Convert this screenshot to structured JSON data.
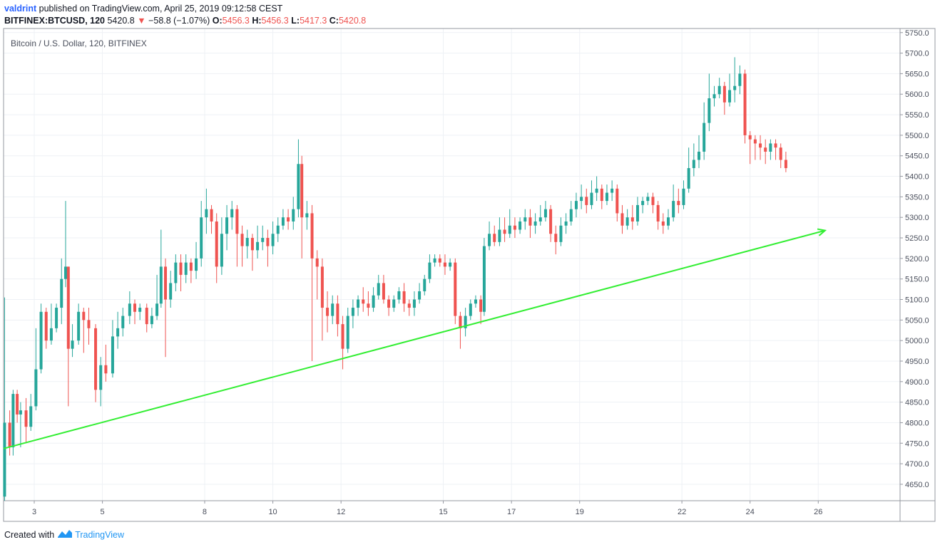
{
  "header": {
    "user": "valdrint",
    "published_text": "published on TradingView.com, April 25, 2019 09:12:58 CEST",
    "symbol": "BITFINEX:BTCUSD, 120",
    "last": "5420.8",
    "change_arrow": "▼",
    "change": "−58.8 (−1.07%)",
    "o_label": "O:",
    "o_value": "5456.3",
    "h_label": "H:",
    "h_value": "5456.3",
    "l_label": "L:",
    "l_value": "5417.3",
    "c_label": "C:",
    "c_value": "5420.8"
  },
  "footer": {
    "created_with": "Created with",
    "brand": "TradingView"
  },
  "colors": {
    "up": "#26a69a",
    "down": "#ef5350",
    "trendline": "#33ee33",
    "grid": "#eef1f5"
  },
  "chart_data": {
    "type": "candlestick",
    "title": "Bitcoin / U.S. Dollar, 120, BITFINEX",
    "ylim": [
      4610,
      5760
    ],
    "yticks": [
      4650,
      4700,
      4750,
      4800,
      4850,
      4900,
      4950,
      5000,
      5050,
      5100,
      5150,
      5200,
      5250,
      5300,
      5350,
      5400,
      5450,
      5500,
      5550,
      5600,
      5650,
      5700,
      5750
    ],
    "x_tick_labels": [
      "3",
      "5",
      "8",
      "10",
      "12",
      "15",
      "17",
      "19",
      "22",
      "24",
      "26"
    ],
    "x_tick_days": [
      3,
      5,
      8,
      10,
      12,
      15,
      17,
      19,
      22,
      24,
      26
    ],
    "xlim_days": [
      2.1,
      28.4
    ],
    "grid": true,
    "trendline": {
      "from": {
        "day": 2.1,
        "price": 4737
      },
      "to": {
        "day": 26.2,
        "price": 5268
      }
    },
    "candles": [
      [
        2.13,
        4620,
        4800,
        4610,
        5105
      ],
      [
        2.28,
        4800,
        4740,
        4720,
        4830
      ],
      [
        2.38,
        4740,
        4870,
        4720,
        4880
      ],
      [
        2.5,
        4870,
        4820,
        4800,
        4880
      ],
      [
        2.6,
        4820,
        4830,
        4740,
        4850
      ],
      [
        2.76,
        4830,
        4790,
        4750,
        4860
      ],
      [
        2.9,
        4790,
        4840,
        4780,
        4870
      ],
      [
        3.05,
        4840,
        4930,
        4830,
        5030
      ],
      [
        3.2,
        4930,
        5070,
        4920,
        5090
      ],
      [
        3.35,
        5070,
        5000,
        4980,
        5080
      ],
      [
        3.5,
        5000,
        5030,
        4990,
        5090
      ],
      [
        3.65,
        5030,
        5080,
        5020,
        5090
      ],
      [
        3.8,
        5080,
        5150,
        5040,
        5200
      ],
      [
        3.92,
        5150,
        5180,
        5130,
        5340
      ],
      [
        4.0,
        5180,
        4980,
        4840,
        5180
      ],
      [
        4.12,
        4980,
        5000,
        4960,
        5040
      ],
      [
        4.3,
        5000,
        5070,
        4990,
        5090
      ],
      [
        4.45,
        5070,
        5050,
        4970,
        5080
      ],
      [
        4.6,
        5050,
        5030,
        4990,
        5080
      ],
      [
        4.8,
        5030,
        4880,
        4850,
        5040
      ],
      [
        4.95,
        4880,
        4940,
        4840,
        4960
      ],
      [
        5.1,
        4940,
        4920,
        4900,
        4990
      ],
      [
        5.3,
        4920,
        5010,
        4910,
        5050
      ],
      [
        5.45,
        5010,
        5030,
        4980,
        5070
      ],
      [
        5.6,
        5030,
        5060,
        5010,
        5080
      ],
      [
        5.8,
        5060,
        5090,
        5040,
        5120
      ],
      [
        5.95,
        5090,
        5070,
        5040,
        5100
      ],
      [
        6.1,
        5070,
        5080,
        5050,
        5090
      ],
      [
        6.3,
        5080,
        5040,
        5020,
        5090
      ],
      [
        6.45,
        5040,
        5060,
        5030,
        5080
      ],
      [
        6.6,
        5060,
        5090,
        5050,
        5160
      ],
      [
        6.72,
        5090,
        5180,
        5080,
        5270
      ],
      [
        6.85,
        5180,
        5100,
        4960,
        5200
      ],
      [
        7.0,
        5100,
        5140,
        5080,
        5170
      ],
      [
        7.15,
        5140,
        5190,
        5120,
        5210
      ],
      [
        7.3,
        5190,
        5160,
        5120,
        5210
      ],
      [
        7.45,
        5160,
        5190,
        5140,
        5210
      ],
      [
        7.6,
        5190,
        5170,
        5140,
        5200
      ],
      [
        7.75,
        5170,
        5200,
        5150,
        5240
      ],
      [
        7.9,
        5200,
        5300,
        5180,
        5340
      ],
      [
        8.05,
        5300,
        5320,
        5260,
        5370
      ],
      [
        8.2,
        5320,
        5290,
        5260,
        5330
      ],
      [
        8.35,
        5290,
        5180,
        5140,
        5310
      ],
      [
        8.5,
        5180,
        5260,
        5160,
        5300
      ],
      [
        8.65,
        5260,
        5300,
        5220,
        5330
      ],
      [
        8.8,
        5300,
        5320,
        5270,
        5340
      ],
      [
        8.95,
        5320,
        5260,
        5180,
        5330
      ],
      [
        9.1,
        5260,
        5230,
        5180,
        5280
      ],
      [
        9.25,
        5230,
        5250,
        5200,
        5270
      ],
      [
        9.4,
        5250,
        5220,
        5170,
        5260
      ],
      [
        9.55,
        5220,
        5240,
        5200,
        5280
      ],
      [
        9.7,
        5240,
        5250,
        5220,
        5280
      ],
      [
        9.85,
        5250,
        5230,
        5180,
        5270
      ],
      [
        10.0,
        5230,
        5260,
        5210,
        5290
      ],
      [
        10.15,
        5260,
        5280,
        5240,
        5300
      ],
      [
        10.3,
        5280,
        5300,
        5270,
        5320
      ],
      [
        10.45,
        5300,
        5290,
        5270,
        5320
      ],
      [
        10.6,
        5290,
        5320,
        5270,
        5350
      ],
      [
        10.75,
        5320,
        5430,
        5300,
        5490
      ],
      [
        10.85,
        5430,
        5300,
        5200,
        5450
      ],
      [
        11.0,
        5300,
        5310,
        5270,
        5340
      ],
      [
        11.15,
        5310,
        5200,
        4950,
        5330
      ],
      [
        11.3,
        5200,
        5180,
        5100,
        5220
      ],
      [
        11.45,
        5180,
        5080,
        5000,
        5200
      ],
      [
        11.6,
        5080,
        5060,
        5020,
        5120
      ],
      [
        11.75,
        5060,
        5090,
        5040,
        5110
      ],
      [
        11.9,
        5090,
        5040,
        5010,
        5110
      ],
      [
        12.05,
        5040,
        4980,
        4930,
        5060
      ],
      [
        12.2,
        4980,
        5060,
        4970,
        5080
      ],
      [
        12.35,
        5060,
        5080,
        5030,
        5100
      ],
      [
        12.5,
        5080,
        5100,
        5060,
        5110
      ],
      [
        12.65,
        5100,
        5090,
        5070,
        5130
      ],
      [
        12.8,
        5090,
        5080,
        5060,
        5120
      ],
      [
        12.95,
        5080,
        5110,
        5070,
        5130
      ],
      [
        13.1,
        5110,
        5140,
        5100,
        5160
      ],
      [
        13.25,
        5140,
        5100,
        5090,
        5160
      ],
      [
        13.4,
        5100,
        5080,
        5060,
        5110
      ],
      [
        13.55,
        5080,
        5100,
        5070,
        5110
      ],
      [
        13.7,
        5100,
        5120,
        5090,
        5130
      ],
      [
        13.85,
        5120,
        5090,
        5070,
        5140
      ],
      [
        14.0,
        5090,
        5080,
        5060,
        5100
      ],
      [
        14.15,
        5080,
        5100,
        5060,
        5120
      ],
      [
        14.3,
        5100,
        5120,
        5090,
        5140
      ],
      [
        14.45,
        5120,
        5150,
        5110,
        5160
      ],
      [
        14.6,
        5150,
        5190,
        5140,
        5210
      ],
      [
        14.75,
        5190,
        5200,
        5180,
        5210
      ],
      [
        14.9,
        5200,
        5190,
        5180,
        5210
      ],
      [
        15.05,
        5190,
        5180,
        5160,
        5210
      ],
      [
        15.2,
        5180,
        5190,
        5170,
        5200
      ],
      [
        15.35,
        5190,
        5060,
        5040,
        5200
      ],
      [
        15.5,
        5060,
        5030,
        4980,
        5070
      ],
      [
        15.65,
        5030,
        5060,
        5010,
        5080
      ],
      [
        15.8,
        5060,
        5090,
        5050,
        5100
      ],
      [
        15.95,
        5090,
        5100,
        5080,
        5110
      ],
      [
        16.1,
        5100,
        5070,
        5040,
        5110
      ],
      [
        16.2,
        5070,
        5230,
        5060,
        5250
      ],
      [
        16.35,
        5230,
        5260,
        5220,
        5290
      ],
      [
        16.5,
        5260,
        5240,
        5230,
        5280
      ],
      [
        16.65,
        5240,
        5270,
        5230,
        5300
      ],
      [
        16.8,
        5270,
        5260,
        5240,
        5300
      ],
      [
        16.95,
        5260,
        5280,
        5250,
        5320
      ],
      [
        17.1,
        5280,
        5270,
        5250,
        5300
      ],
      [
        17.25,
        5270,
        5290,
        5260,
        5300
      ],
      [
        17.4,
        5290,
        5300,
        5270,
        5320
      ],
      [
        17.55,
        5300,
        5280,
        5250,
        5320
      ],
      [
        17.7,
        5280,
        5290,
        5260,
        5310
      ],
      [
        17.85,
        5290,
        5300,
        5280,
        5330
      ],
      [
        18.0,
        5300,
        5320,
        5290,
        5340
      ],
      [
        18.15,
        5320,
        5260,
        5240,
        5330
      ],
      [
        18.3,
        5260,
        5240,
        5210,
        5280
      ],
      [
        18.45,
        5240,
        5280,
        5230,
        5300
      ],
      [
        18.6,
        5280,
        5290,
        5260,
        5310
      ],
      [
        18.75,
        5290,
        5320,
        5280,
        5340
      ],
      [
        18.9,
        5320,
        5340,
        5300,
        5360
      ],
      [
        19.05,
        5340,
        5350,
        5320,
        5380
      ],
      [
        19.2,
        5350,
        5330,
        5310,
        5370
      ],
      [
        19.35,
        5330,
        5360,
        5320,
        5390
      ],
      [
        19.5,
        5360,
        5370,
        5340,
        5400
      ],
      [
        19.65,
        5370,
        5340,
        5320,
        5380
      ],
      [
        19.8,
        5340,
        5360,
        5330,
        5380
      ],
      [
        19.95,
        5360,
        5370,
        5340,
        5390
      ],
      [
        20.1,
        5370,
        5310,
        5290,
        5380
      ],
      [
        20.25,
        5310,
        5280,
        5260,
        5330
      ],
      [
        20.4,
        5280,
        5300,
        5270,
        5320
      ],
      [
        20.55,
        5300,
        5290,
        5270,
        5330
      ],
      [
        20.7,
        5290,
        5330,
        5280,
        5350
      ],
      [
        20.85,
        5330,
        5340,
        5310,
        5350
      ],
      [
        21.0,
        5340,
        5350,
        5330,
        5360
      ],
      [
        21.15,
        5350,
        5330,
        5310,
        5360
      ],
      [
        21.3,
        5330,
        5290,
        5270,
        5340
      ],
      [
        21.45,
        5290,
        5280,
        5260,
        5310
      ],
      [
        21.6,
        5280,
        5300,
        5270,
        5320
      ],
      [
        21.75,
        5300,
        5340,
        5290,
        5380
      ],
      [
        21.9,
        5340,
        5330,
        5310,
        5370
      ],
      [
        22.05,
        5330,
        5370,
        5320,
        5390
      ],
      [
        22.2,
        5370,
        5420,
        5360,
        5470
      ],
      [
        22.35,
        5420,
        5440,
        5400,
        5480
      ],
      [
        22.5,
        5440,
        5460,
        5420,
        5500
      ],
      [
        22.65,
        5460,
        5530,
        5440,
        5580
      ],
      [
        22.8,
        5530,
        5590,
        5510,
        5650
      ],
      [
        22.95,
        5590,
        5600,
        5570,
        5620
      ],
      [
        23.1,
        5600,
        5620,
        5590,
        5640
      ],
      [
        23.25,
        5620,
        5580,
        5550,
        5630
      ],
      [
        23.4,
        5580,
        5610,
        5570,
        5650
      ],
      [
        23.55,
        5610,
        5620,
        5580,
        5690
      ],
      [
        23.7,
        5620,
        5650,
        5600,
        5670
      ],
      [
        23.85,
        5650,
        5500,
        5480,
        5660
      ],
      [
        24.0,
        5500,
        5490,
        5430,
        5510
      ],
      [
        24.15,
        5490,
        5480,
        5440,
        5500
      ],
      [
        24.3,
        5480,
        5470,
        5440,
        5500
      ],
      [
        24.45,
        5470,
        5460,
        5430,
        5490
      ],
      [
        24.6,
        5460,
        5480,
        5440,
        5490
      ],
      [
        24.75,
        5480,
        5470,
        5440,
        5490
      ],
      [
        24.9,
        5470,
        5440,
        5420,
        5480
      ],
      [
        25.05,
        5440,
        5420,
        5410,
        5460
      ]
    ]
  }
}
